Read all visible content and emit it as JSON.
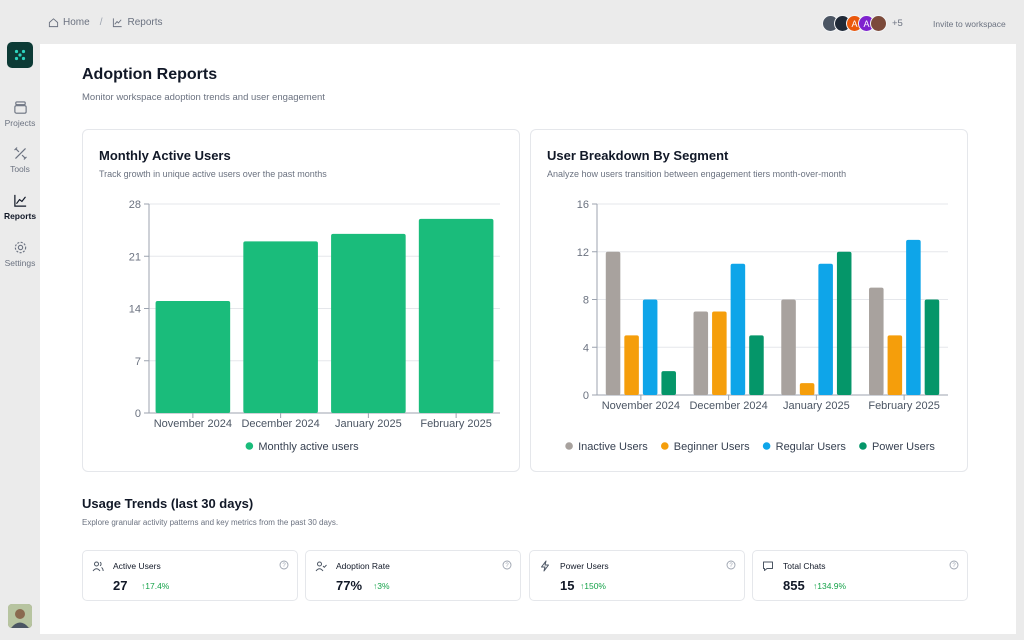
{
  "sidebar": {
    "items": [
      {
        "label": "Projects",
        "icon": "layers-icon"
      },
      {
        "label": "Tools",
        "icon": "tools-icon"
      },
      {
        "label": "Reports",
        "icon": "chart-line-icon",
        "active": true
      },
      {
        "label": "Settings",
        "icon": "gear-icon"
      }
    ]
  },
  "breadcrumb": {
    "home": "Home",
    "current": "Reports"
  },
  "header": {
    "avatar_letters": [
      "A",
      "A"
    ],
    "more_count": "+5",
    "invite_label": "Invite to workspace"
  },
  "page": {
    "title": "Adoption Reports",
    "subtitle": "Monitor workspace adoption trends and user engagement"
  },
  "cards": {
    "mau": {
      "title": "Monthly Active Users",
      "subtitle": "Track growth in unique active users over the past months"
    },
    "segment": {
      "title": "User Breakdown By Segment",
      "subtitle": "Analyze how users transition between engagement tiers month-over-month"
    }
  },
  "chart_data": [
    {
      "type": "bar",
      "categories": [
        "November 2024",
        "December 2024",
        "January 2025",
        "February 2025"
      ],
      "series": [
        {
          "name": "Monthly active users",
          "values": [
            15,
            23,
            24,
            26
          ],
          "color": "#1abc7b"
        }
      ],
      "ylim": [
        0,
        28
      ],
      "yticks": [
        "0",
        "7",
        "14",
        "21",
        "28"
      ],
      "legend": "bottom",
      "grid": true
    },
    {
      "type": "bar",
      "categories": [
        "November 2024",
        "December 2024",
        "January 2025",
        "February 2025"
      ],
      "series": [
        {
          "name": "Inactive Users",
          "values": [
            12,
            7,
            8,
            9
          ],
          "color": "#a8a29e"
        },
        {
          "name": "Beginner Users",
          "values": [
            5,
            7,
            1,
            5
          ],
          "color": "#f59e0b"
        },
        {
          "name": "Regular Users",
          "values": [
            8,
            11,
            11,
            13
          ],
          "color": "#0ea5e9"
        },
        {
          "name": "Power Users",
          "values": [
            2,
            5,
            12,
            8
          ],
          "color": "#059669"
        }
      ],
      "ylim": [
        0,
        16
      ],
      "yticks": [
        "0",
        "4",
        "8",
        "12",
        "16"
      ],
      "legend": "bottom",
      "grid": true
    }
  ],
  "usage": {
    "title": "Usage Trends (last 30 days)",
    "subtitle": "Explore granular activity patterns and key metrics from the past 30 days."
  },
  "metrics": [
    {
      "label": "Active Users",
      "value": "27",
      "change": "↑17.4%",
      "icon": "users-icon"
    },
    {
      "label": "Adoption Rate",
      "value": "77%",
      "change": "↑3%",
      "icon": "user-check-icon"
    },
    {
      "label": "Power Users",
      "value": "15",
      "change": "↑150%",
      "icon": "zap-icon"
    },
    {
      "label": "Total Chats",
      "value": "855",
      "change": "↑134.9%",
      "icon": "chat-icon"
    }
  ],
  "colors": {
    "accent": "#1abc7b",
    "logo_bg": "#0d3b36",
    "positive": "#16a34a"
  }
}
